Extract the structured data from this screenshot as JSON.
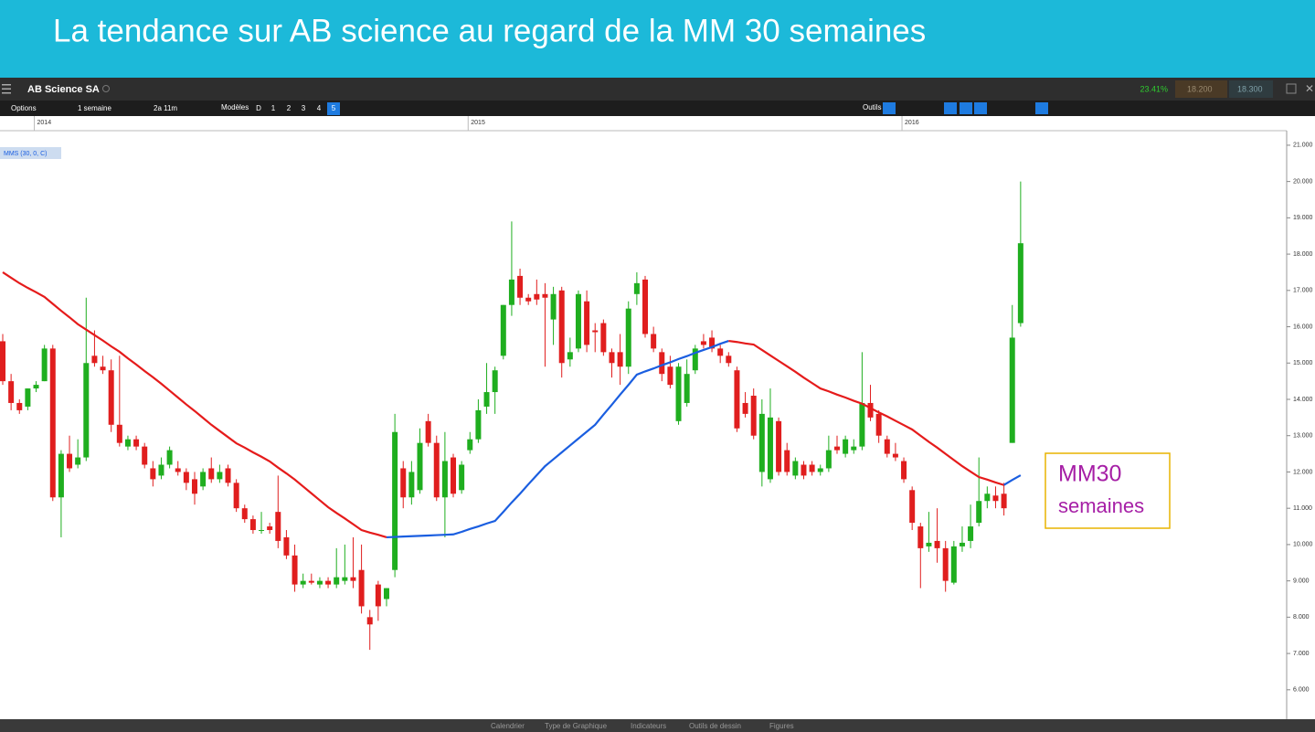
{
  "chart_data": {
    "type": "candlestick",
    "title": "La tendance sur AB science au regard de la MM 30 semaines",
    "categories": [
      null,
      null,
      null,
      null,
      "2014",
      null,
      null,
      null,
      null,
      null,
      null,
      null,
      null,
      null,
      null,
      null,
      null,
      null,
      null,
      null,
      null,
      null,
      null,
      null,
      null,
      null,
      null,
      null,
      null,
      null,
      null,
      null,
      null,
      null,
      null,
      null,
      null,
      null,
      null,
      null,
      null,
      null,
      null,
      null,
      null,
      null,
      null,
      null,
      null,
      null,
      null,
      null,
      null,
      null,
      null,
      null,
      "2015",
      null,
      null,
      null,
      null,
      null,
      null,
      null,
      null,
      null,
      null,
      null,
      null,
      null,
      null,
      null,
      null,
      null,
      null,
      null,
      null,
      null,
      null,
      null,
      null,
      null,
      null,
      null,
      null,
      null,
      null,
      null,
      null,
      null,
      null,
      null,
      null,
      null,
      null,
      null,
      null,
      null,
      null,
      null,
      null,
      null,
      null,
      null,
      null,
      null,
      null,
      null,
      "2016",
      null,
      null,
      null,
      null,
      null,
      null,
      null,
      null,
      null,
      null,
      null,
      null,
      null,
      null
    ],
    "open": [
      15.6,
      14.5,
      13.9,
      13.8,
      14.3,
      14.5,
      15.4,
      11.3,
      12.5,
      12.2,
      12.4,
      15.2,
      14.9,
      14.8,
      13.3,
      12.7,
      12.9,
      12.7,
      12.1,
      11.9,
      12.2,
      12.1,
      12.0,
      11.8,
      11.6,
      12.1,
      11.8,
      12.1,
      11.7,
      11.0,
      10.7,
      10.4,
      10.5,
      10.9,
      10.2,
      9.7,
      8.9,
      9.0,
      8.9,
      9.0,
      8.9,
      9.0,
      9.1,
      9.3,
      8.0,
      8.9,
      8.5,
      9.3,
      12.1,
      11.3,
      11.5,
      13.4,
      12.8,
      11.3,
      12.4,
      11.5,
      12.6,
      12.9,
      13.8,
      14.2,
      15.2,
      16.6,
      17.4,
      16.8,
      16.9,
      16.9,
      16.2,
      17.0,
      15.1,
      15.4,
      16.7,
      15.9,
      16.1,
      15.3,
      15.3,
      14.9,
      16.9,
      17.3,
      15.8,
      15.3,
      14.9,
      13.4,
      13.9,
      14.8,
      15.6,
      15.7,
      15.4,
      15.2,
      14.8,
      13.9,
      14.1,
      12.0,
      11.8,
      13.4,
      12.6,
      11.9,
      12.2,
      12.2,
      12.0,
      12.1,
      12.7,
      12.5,
      12.6,
      12.7,
      13.9,
      13.6,
      12.9,
      12.5,
      12.3,
      11.5,
      10.5,
      9.95,
      10.1,
      9.9,
      8.95,
      9.95,
      10.1,
      10.6,
      11.2,
      11.35,
      11.4,
      12.8,
      16.1
    ],
    "high": [
      15.8,
      14.7,
      14.0,
      14.3,
      14.5,
      15.5,
      15.5,
      12.6,
      13.0,
      12.9,
      16.8,
      15.9,
      15.2,
      15.1,
      15.2,
      13.0,
      13.0,
      12.8,
      12.3,
      12.4,
      12.7,
      12.3,
      12.1,
      12.0,
      12.1,
      12.4,
      12.2,
      12.2,
      11.8,
      11.1,
      10.8,
      10.9,
      10.6,
      11.9,
      10.4,
      10.0,
      9.2,
      9.2,
      9.1,
      9.1,
      9.9,
      10.0,
      10.2,
      10.0,
      8.2,
      9.0,
      8.8,
      13.6,
      12.3,
      12.3,
      13.2,
      13.6,
      13.0,
      13.1,
      12.5,
      12.3,
      13.1,
      14.0,
      15.0,
      14.9,
      16.6,
      18.9,
      17.6,
      16.9,
      17.3,
      17.2,
      17.1,
      17.1,
      15.7,
      17.0,
      17.0,
      16.1,
      16.2,
      15.4,
      15.8,
      16.7,
      17.5,
      17.4,
      16.0,
      15.4,
      15.2,
      15.0,
      15.1,
      15.5,
      15.8,
      15.9,
      15.5,
      15.3,
      14.9,
      14.2,
      14.3,
      14.0,
      14.3,
      13.5,
      12.8,
      12.4,
      12.3,
      12.3,
      12.2,
      13.0,
      13.0,
      13.0,
      12.9,
      15.3,
      14.4,
      13.7,
      13.0,
      12.8,
      12.4,
      11.6,
      10.6,
      10.9,
      11.0,
      10.1,
      10.1,
      10.5,
      11.1,
      12.4,
      11.6,
      11.6,
      11.7,
      16.6,
      20.0
    ],
    "low": [
      14.4,
      13.7,
      13.6,
      13.7,
      14.2,
      14.5,
      11.2,
      10.2,
      12.0,
      12.1,
      12.3,
      14.9,
      14.7,
      13.1,
      12.7,
      12.6,
      12.6,
      12.1,
      11.6,
      11.8,
      12.1,
      11.9,
      11.5,
      11.1,
      11.5,
      11.7,
      11.7,
      11.6,
      10.9,
      10.6,
      10.3,
      10.3,
      10.3,
      9.9,
      9.6,
      8.7,
      8.8,
      8.9,
      8.8,
      8.8,
      8.8,
      8.9,
      8.8,
      8.1,
      7.1,
      7.9,
      8.3,
      9.1,
      11.0,
      11.1,
      11.4,
      12.7,
      11.2,
      10.2,
      11.3,
      11.4,
      12.5,
      12.8,
      13.6,
      13.6,
      15.1,
      16.3,
      16.6,
      16.6,
      16.6,
      14.9,
      15.5,
      14.6,
      14.9,
      15.3,
      15.3,
      15.3,
      15.2,
      14.6,
      14.4,
      14.7,
      16.6,
      15.7,
      15.3,
      14.5,
      14.3,
      13.3,
      13.8,
      14.7,
      15.4,
      15.3,
      15.0,
      14.9,
      13.1,
      13.5,
      12.9,
      11.6,
      11.7,
      11.9,
      11.9,
      11.8,
      11.8,
      11.9,
      11.9,
      12.0,
      12.5,
      12.4,
      12.5,
      12.6,
      13.4,
      12.8,
      12.4,
      12.3,
      11.7,
      10.4,
      8.8,
      9.8,
      9.5,
      8.7,
      8.9,
      9.8,
      9.9,
      10.5,
      11.0,
      11.0,
      10.8,
      12.8,
      16.0
    ],
    "close": [
      14.5,
      13.9,
      13.7,
      14.3,
      14.4,
      15.4,
      11.3,
      12.5,
      12.1,
      12.4,
      15.0,
      15.0,
      14.8,
      13.3,
      12.8,
      12.9,
      12.7,
      12.2,
      11.8,
      12.2,
      12.6,
      12.0,
      11.7,
      11.4,
      12.0,
      11.8,
      12.0,
      11.7,
      11.0,
      10.7,
      10.4,
      10.4,
      10.4,
      10.1,
      9.7,
      8.9,
      9.0,
      8.95,
      9.0,
      8.9,
      9.1,
      9.1,
      9.0,
      8.3,
      7.8,
      8.3,
      8.8,
      13.1,
      11.3,
      12.0,
      12.8,
      12.8,
      11.3,
      12.3,
      11.4,
      12.2,
      12.9,
      13.7,
      14.2,
      14.8,
      16.6,
      17.3,
      16.8,
      16.7,
      16.75,
      16.8,
      16.9,
      15.0,
      15.3,
      16.9,
      15.5,
      15.85,
      15.3,
      15.0,
      14.9,
      16.5,
      17.2,
      15.8,
      15.4,
      14.7,
      14.4,
      14.9,
      14.7,
      15.4,
      15.5,
      15.4,
      15.2,
      15.0,
      13.2,
      13.6,
      13.0,
      13.6,
      13.5,
      12.0,
      12.0,
      12.3,
      11.9,
      12.0,
      12.1,
      12.6,
      12.6,
      12.9,
      12.7,
      13.9,
      13.5,
      13.0,
      12.5,
      12.4,
      11.8,
      10.6,
      9.9,
      10.05,
      9.9,
      9.0,
      9.95,
      10.05,
      10.5,
      11.2,
      11.4,
      11.2,
      11.0,
      15.7,
      18.3
    ],
    "up_color": "#1fae1f",
    "down_color": "#e01e1e",
    "moving_average": {
      "name": "MMS (30, 0, C)",
      "rising_color": "#1a5ee0",
      "falling_color": "#e51b1b",
      "values": [
        17.5,
        17.35,
        17.2,
        17.07,
        16.95,
        16.82,
        16.63,
        16.44,
        16.26,
        16.07,
        15.92,
        15.77,
        15.62,
        15.46,
        15.31,
        15.13,
        14.96,
        14.78,
        14.61,
        14.43,
        14.24,
        14.05,
        13.86,
        13.68,
        13.49,
        13.3,
        13.13,
        12.96,
        12.79,
        12.67,
        12.54,
        12.42,
        12.29,
        12.12,
        11.96,
        11.79,
        11.6,
        11.41,
        11.22,
        11.03,
        10.87,
        10.72,
        10.56,
        10.4,
        10.33,
        10.27,
        10.2,
        10.21,
        10.22,
        10.23,
        10.24,
        10.25,
        10.26,
        10.27,
        10.28,
        10.35,
        10.43,
        10.5,
        10.58,
        10.65,
        10.9,
        11.16,
        11.4,
        11.66,
        11.91,
        12.16,
        12.35,
        12.54,
        12.73,
        12.92,
        13.11,
        13.3,
        13.58,
        13.85,
        14.13,
        14.4,
        14.68,
        14.77,
        14.85,
        14.94,
        15.02,
        15.11,
        15.19,
        15.28,
        15.36,
        15.44,
        15.53,
        15.61,
        15.58,
        15.54,
        15.51,
        15.36,
        15.21,
        15.06,
        14.91,
        14.76,
        14.6,
        14.45,
        14.3,
        14.22,
        14.13,
        14.05,
        13.96,
        13.88,
        13.76,
        13.64,
        13.53,
        13.41,
        13.29,
        13.17,
        13.0,
        12.83,
        12.67,
        12.5,
        12.33,
        12.16,
        12.01,
        11.86,
        11.79,
        11.71,
        11.64,
        11.78,
        11.91
      ]
    },
    "ylim": [
      5.24,
      21.35
    ],
    "yticks": [
      {
        "value": 21,
        "label": "21.000"
      },
      {
        "value": 20,
        "label": "20.000"
      },
      {
        "value": 19,
        "label": "19.000"
      },
      {
        "value": 18,
        "label": "18.000"
      },
      {
        "value": 17,
        "label": "17.000"
      },
      {
        "value": 16,
        "label": "16.000"
      },
      {
        "value": 15,
        "label": "15.000"
      },
      {
        "value": 14,
        "label": "14.000"
      },
      {
        "value": 13,
        "label": "13.000"
      },
      {
        "value": 12,
        "label": "12.000"
      },
      {
        "value": 11,
        "label": "11.000"
      },
      {
        "value": 10,
        "label": "10.000"
      },
      {
        "value": 9,
        "label": "9.000"
      },
      {
        "value": 8,
        "label": "8.000"
      },
      {
        "value": 7,
        "label": "7.000"
      },
      {
        "value": 6,
        "label": "6.000"
      }
    ],
    "grid": false,
    "annotation": [
      "MM30",
      "semaines"
    ]
  },
  "ui": {
    "instrument": "AB Science SA",
    "change": "23.41%",
    "sell": "18.200",
    "buy": "18.300",
    "options": "Options",
    "interval": "1 semaine",
    "range": "2a 11m",
    "models": "Modèles",
    "periods": [
      "D",
      "1",
      "2",
      "3",
      "4",
      "5"
    ],
    "tools": "Outils",
    "bottom_tabs": [
      "Calendrier",
      "Type de Graphique",
      "Indicateurs",
      "Outils de dessin",
      "Figures"
    ]
  }
}
